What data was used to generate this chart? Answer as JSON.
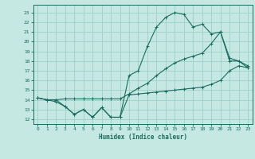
{
  "title": "",
  "xlabel": "Humidex (Indice chaleur)",
  "xlim": [
    -0.5,
    23.5
  ],
  "ylim": [
    11.5,
    23.8
  ],
  "yticks": [
    12,
    13,
    14,
    15,
    16,
    17,
    18,
    19,
    20,
    21,
    22,
    23
  ],
  "xticks": [
    0,
    1,
    2,
    3,
    4,
    5,
    6,
    7,
    8,
    9,
    10,
    11,
    12,
    13,
    14,
    15,
    16,
    17,
    18,
    19,
    20,
    21,
    22,
    23
  ],
  "bg_color": "#c5e8e2",
  "grid_color": "#9ecfc7",
  "line_color": "#1a6b5e",
  "line1_x": [
    0,
    1,
    2,
    3,
    4,
    5,
    6,
    7,
    8,
    9,
    10,
    11,
    12,
    13,
    14,
    15,
    16,
    17,
    18,
    19,
    20,
    21,
    22,
    23
  ],
  "line1_y": [
    14.2,
    14.0,
    14.0,
    13.3,
    12.5,
    13.0,
    12.2,
    13.2,
    12.2,
    12.2,
    14.5,
    14.6,
    14.7,
    14.8,
    14.9,
    15.0,
    15.1,
    15.2,
    15.3,
    15.6,
    16.0,
    17.0,
    17.5,
    17.3
  ],
  "line2_x": [
    0,
    1,
    2,
    3,
    4,
    5,
    6,
    7,
    8,
    9,
    10,
    11,
    12,
    13,
    14,
    15,
    16,
    17,
    18,
    19,
    20,
    21,
    22,
    23
  ],
  "line2_y": [
    14.2,
    14.0,
    14.0,
    14.1,
    14.1,
    14.1,
    14.1,
    14.1,
    14.1,
    14.1,
    14.6,
    15.2,
    15.7,
    16.5,
    17.2,
    17.8,
    18.2,
    18.5,
    18.8,
    19.8,
    21.0,
    18.3,
    18.0,
    17.5
  ],
  "line3_x": [
    0,
    1,
    2,
    3,
    4,
    5,
    6,
    7,
    8,
    9,
    10,
    11,
    12,
    13,
    14,
    15,
    16,
    17,
    18,
    19,
    20,
    21,
    22,
    23
  ],
  "line3_y": [
    14.2,
    14.0,
    13.8,
    13.3,
    12.5,
    13.0,
    12.2,
    13.2,
    12.2,
    12.2,
    16.5,
    17.0,
    19.5,
    21.5,
    22.5,
    23.0,
    22.8,
    21.5,
    21.8,
    20.8,
    21.0,
    18.0,
    18.0,
    17.3
  ]
}
